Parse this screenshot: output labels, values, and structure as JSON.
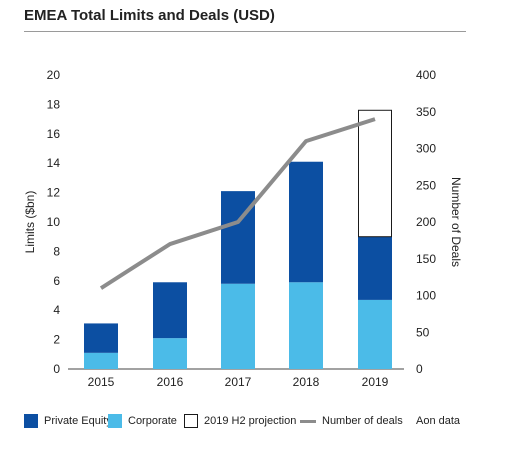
{
  "title": "EMEA Total Limits and Deals (USD)",
  "colors": {
    "private_equity": "#0c4fa2",
    "corporate": "#4bbbe8",
    "projection_fill": "#ffffff",
    "projection_stroke": "#1a1a1a",
    "deals_line": "#8c8c8c",
    "rule": "#9a9a9a"
  },
  "legend": {
    "private_equity": "Private Equity",
    "corporate": "Corporate",
    "projection": "2019 H2 projection",
    "deals": "Number of deals",
    "source": "Aon data"
  },
  "chart_data": {
    "type": "bar",
    "stacked": true,
    "categories": [
      "2015",
      "2016",
      "2017",
      "2018",
      "2019"
    ],
    "series": [
      {
        "name": "Corporate",
        "values": [
          1.1,
          2.1,
          5.8,
          5.9,
          4.7
        ]
      },
      {
        "name": "Private Equity",
        "values": [
          2.0,
          3.8,
          6.3,
          8.2,
          4.3
        ]
      },
      {
        "name": "2019 H2 projection",
        "values": [
          0,
          0,
          0,
          0,
          8.6
        ]
      }
    ],
    "line_series": {
      "name": "Number of deals",
      "axis": "right",
      "values": [
        110,
        170,
        200,
        310,
        340
      ]
    },
    "ylabel": "Limits ($bn)",
    "ylabel_right": "Number of Deals",
    "ylim": [
      0,
      20
    ],
    "ylim_right": [
      0,
      400
    ],
    "yticks": [
      "0",
      "2",
      "4",
      "6",
      "8",
      "10",
      "12",
      "14",
      "16",
      "18",
      "20"
    ],
    "yticks_right": [
      "0",
      "50",
      "100",
      "150",
      "200",
      "250",
      "300",
      "350",
      "400"
    ],
    "grid": false,
    "legend_position": "bottom"
  }
}
